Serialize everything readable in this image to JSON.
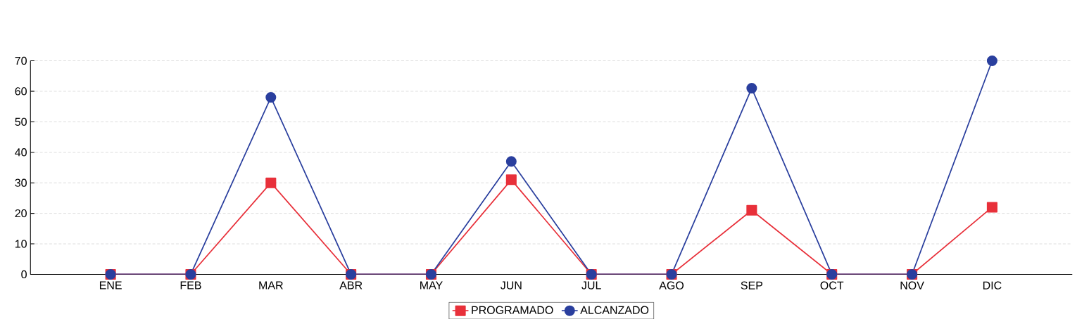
{
  "chart_data": {
    "type": "line",
    "categories": [
      "ENE",
      "FEB",
      "MAR",
      "ABR",
      "MAY",
      "JUN",
      "JUL",
      "AGO",
      "SEP",
      "OCT",
      "NOV",
      "DIC"
    ],
    "series": [
      {
        "name": "PROGRAMADO",
        "color": "#e8303a",
        "marker": "square",
        "values": [
          0,
          0,
          30,
          0,
          0,
          31,
          0,
          0,
          21,
          0,
          0,
          22
        ]
      },
      {
        "name": "ALCANZADO",
        "color": "#2a3f9e",
        "marker": "circle",
        "values": [
          0,
          0,
          58,
          0,
          0,
          37,
          0,
          0,
          61,
          0,
          0,
          70
        ]
      }
    ],
    "ylim": [
      0,
      70
    ],
    "yticks": [
      0,
      10,
      20,
      30,
      40,
      50,
      60,
      70
    ],
    "grid": "y",
    "legend": "bottom",
    "line_style": "solid"
  }
}
